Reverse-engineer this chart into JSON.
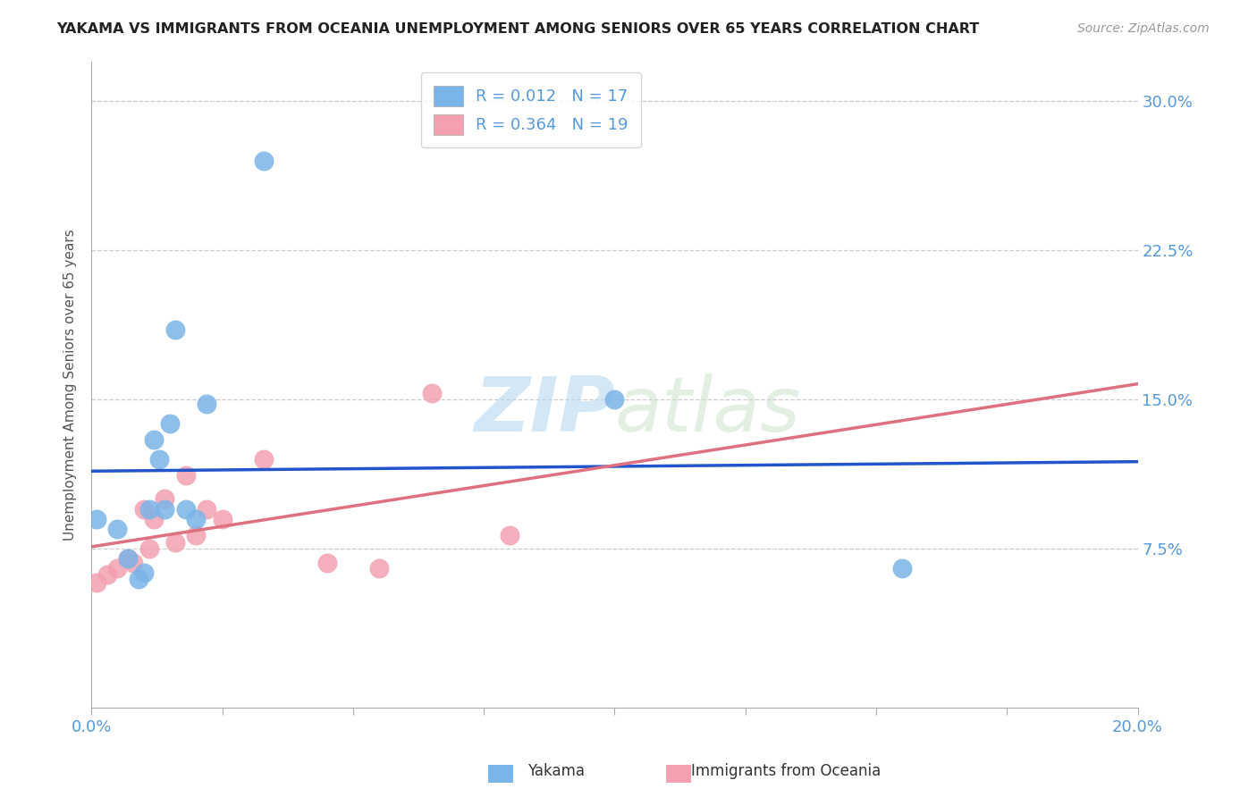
{
  "title": "YAKAMA VS IMMIGRANTS FROM OCEANIA UNEMPLOYMENT AMONG SENIORS OVER 65 YEARS CORRELATION CHART",
  "source": "Source: ZipAtlas.com",
  "ylabel": "Unemployment Among Seniors over 65 years",
  "ytick_labels": [
    "7.5%",
    "15.0%",
    "22.5%",
    "30.0%"
  ],
  "ytick_values": [
    0.075,
    0.15,
    0.225,
    0.3
  ],
  "xlim": [
    0.0,
    0.2
  ],
  "ylim": [
    -0.005,
    0.32
  ],
  "legend_R_yakama": "R = 0.012",
  "legend_N_yakama": "N = 17",
  "legend_R_oceania": "R = 0.364",
  "legend_N_oceania": "N = 19",
  "yakama_color": "#7ab4e8",
  "oceania_color": "#f4a0b0",
  "trendline_yakama_color": "#2255cc",
  "trendline_oceania_color": "#e07080",
  "yakama_x": [
    0.001,
    0.005,
    0.007,
    0.009,
    0.01,
    0.011,
    0.012,
    0.013,
    0.014,
    0.015,
    0.016,
    0.018,
    0.02,
    0.022,
    0.033,
    0.1,
    0.155
  ],
  "yakama_y": [
    0.09,
    0.085,
    0.07,
    0.06,
    0.063,
    0.095,
    0.13,
    0.12,
    0.095,
    0.138,
    0.185,
    0.095,
    0.09,
    0.148,
    0.27,
    0.15,
    0.065
  ],
  "oceania_x": [
    0.001,
    0.003,
    0.005,
    0.007,
    0.008,
    0.01,
    0.011,
    0.012,
    0.014,
    0.016,
    0.018,
    0.02,
    0.022,
    0.025,
    0.033,
    0.045,
    0.055,
    0.065,
    0.08
  ],
  "oceania_y": [
    0.058,
    0.062,
    0.065,
    0.07,
    0.068,
    0.095,
    0.075,
    0.09,
    0.1,
    0.078,
    0.112,
    0.082,
    0.095,
    0.09,
    0.12,
    0.068,
    0.065,
    0.153,
    0.082
  ],
  "watermark_zip": "ZIP",
  "watermark_atlas": "atlas",
  "background_color": "#ffffff",
  "grid_color": "#cccccc",
  "xtick_positions": [
    0.0,
    0.025,
    0.05,
    0.075,
    0.1,
    0.125,
    0.15,
    0.175,
    0.2
  ]
}
